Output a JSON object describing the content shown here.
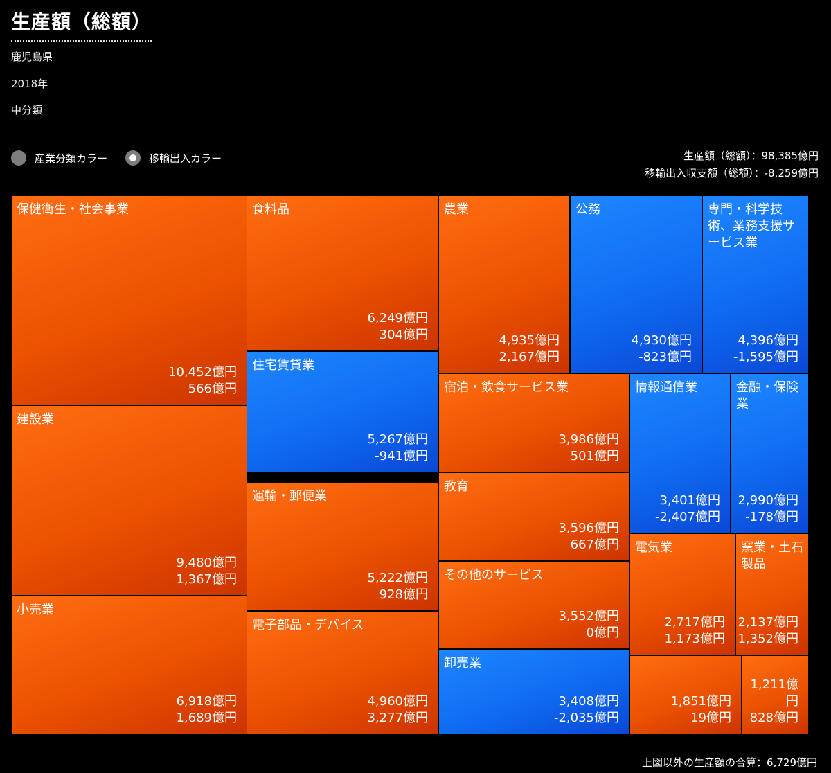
{
  "header": {
    "title": "生産額（総額）",
    "prefecture": "鹿児島県",
    "year": "2018年",
    "classification": "中分類"
  },
  "color_toggle": {
    "options": [
      {
        "label": "産業分類カラー",
        "selected": false
      },
      {
        "label": "移輸出入カラー",
        "selected": true
      }
    ]
  },
  "totals": {
    "production": "生産額（総額）：98,385億円",
    "trade_balance": "移輸出入収支額（総額）：-8,259億円"
  },
  "colors": {
    "inflow": "#ec5200",
    "outflow": "#0f6cf2",
    "background": "#000000"
  },
  "chart_data": {
    "type": "treemap",
    "title": "生産額（総額）",
    "value_label": "生産額",
    "secondary_label": "移輸出入収支額",
    "unit": "億円",
    "items": [
      {
        "name": "保健衛生・社会事業",
        "production": "10,452億円",
        "balance": "566億円",
        "production_value": 10452,
        "balance_value": 566
      },
      {
        "name": "建設業",
        "production": "9,480億円",
        "balance": "1,367億円",
        "production_value": 9480,
        "balance_value": 1367
      },
      {
        "name": "小売業",
        "production": "6,918億円",
        "balance": "1,689億円",
        "production_value": 6918,
        "balance_value": 1689
      },
      {
        "name": "食料品",
        "production": "6,249億円",
        "balance": "304億円",
        "production_value": 6249,
        "balance_value": 304
      },
      {
        "name": "住宅賃貸業",
        "production": "5,267億円",
        "balance": "-941億円",
        "production_value": 5267,
        "balance_value": -941
      },
      {
        "name": "運輸・郵便業",
        "production": "5,222億円",
        "balance": "928億円",
        "production_value": 5222,
        "balance_value": 928
      },
      {
        "name": "電子部品・デバイス",
        "production": "4,960億円",
        "balance": "3,277億円",
        "production_value": 4960,
        "balance_value": 3277
      },
      {
        "name": "農業",
        "production": "4,935億円",
        "balance": "2,167億円",
        "production_value": 4935,
        "balance_value": 2167
      },
      {
        "name": "公務",
        "production": "4,930億円",
        "balance": "-823億円",
        "production_value": 4930,
        "balance_value": -823
      },
      {
        "name": "専門・科学技術、業務支援サービス業",
        "production": "4,396億円",
        "balance": "-1,595億円",
        "production_value": 4396,
        "balance_value": -1595
      },
      {
        "name": "宿泊・飲食サービス業",
        "production": "3,986億円",
        "balance": "501億円",
        "production_value": 3986,
        "balance_value": 501
      },
      {
        "name": "教育",
        "production": "3,596億円",
        "balance": "667億円",
        "production_value": 3596,
        "balance_value": 667
      },
      {
        "name": "その他のサービス",
        "production": "3,552億円",
        "balance": "0億円",
        "production_value": 3552,
        "balance_value": 0
      },
      {
        "name": "卸売業",
        "production": "3,408億円",
        "balance": "-2,035億円",
        "production_value": 3408,
        "balance_value": -2035
      },
      {
        "name": "情報通信業",
        "production": "3,401億円",
        "balance": "-2,407億円",
        "production_value": 3401,
        "balance_value": -2407
      },
      {
        "name": "金融・保険業",
        "production": "2,990億円",
        "balance": "-178億円",
        "production_value": 2990,
        "balance_value": -178
      },
      {
        "name": "電気業",
        "production": "2,717億円",
        "balance": "1,173億円",
        "production_value": 2717,
        "balance_value": 1173
      },
      {
        "name": "窯業・土石製品",
        "production": "2,137億円",
        "balance": "1,352億円",
        "production_value": 2137,
        "balance_value": 1352
      },
      {
        "name": "",
        "production": "1,851億円",
        "balance": "19億円",
        "production_value": 1851,
        "balance_value": 19
      },
      {
        "name": "",
        "production": "1,211億円",
        "balance": "828億円",
        "production_value": 1211,
        "balance_value": 828
      }
    ]
  },
  "footer": {
    "other_total": "上図以外の生産額の合算：6,729億円"
  }
}
